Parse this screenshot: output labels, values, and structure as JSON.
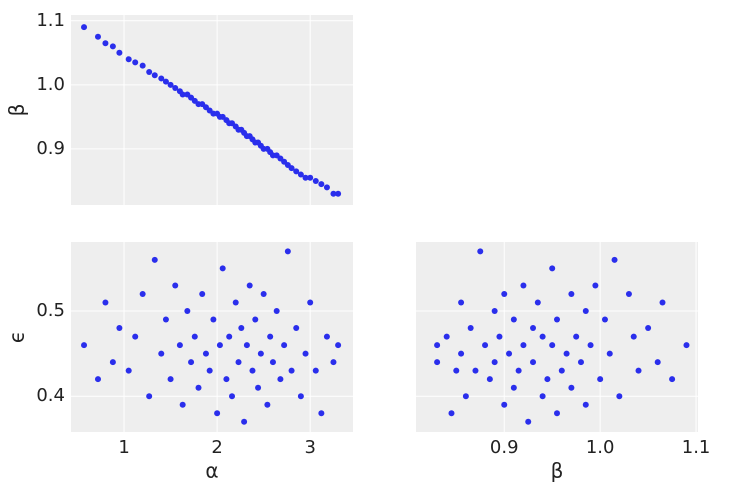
{
  "chart_data": [
    {
      "type": "scatter",
      "ylabel": "β",
      "color": "#2a2eec",
      "grid": true,
      "xtick_labels": false,
      "xlim": [
        0.43,
        3.46
      ],
      "ylim": [
        0.8125,
        1.109
      ],
      "xticks": [
        1,
        2,
        3
      ],
      "yticks": [
        0.9,
        {
          "value": 1,
          "label": "1.0"
        },
        1.1
      ],
      "x": [
        0.57,
        0.72,
        0.8,
        0.88,
        0.95,
        1.05,
        1.12,
        1.2,
        1.27,
        1.33,
        1.4,
        1.45,
        1.5,
        1.55,
        1.6,
        1.63,
        1.68,
        1.72,
        1.76,
        1.8,
        1.84,
        1.88,
        1.92,
        1.96,
        2.0,
        2.03,
        2.06,
        2.1,
        2.13,
        2.16,
        2.2,
        2.23,
        2.26,
        2.29,
        2.32,
        2.35,
        2.38,
        2.41,
        2.44,
        2.47,
        2.5,
        2.54,
        2.57,
        2.6,
        2.64,
        2.68,
        2.72,
        2.76,
        2.8,
        2.85,
        2.9,
        2.95,
        3.0,
        3.06,
        3.12,
        3.18,
        3.25,
        3.3
      ],
      "y": [
        1.09,
        1.075,
        1.065,
        1.06,
        1.05,
        1.04,
        1.035,
        1.03,
        1.02,
        1.015,
        1.01,
        1.005,
        1.0,
        0.995,
        0.99,
        0.985,
        0.985,
        0.98,
        0.975,
        0.97,
        0.97,
        0.965,
        0.96,
        0.955,
        0.955,
        0.95,
        0.95,
        0.945,
        0.94,
        0.94,
        0.935,
        0.93,
        0.93,
        0.925,
        0.92,
        0.92,
        0.915,
        0.91,
        0.91,
        0.905,
        0.9,
        0.9,
        0.895,
        0.89,
        0.89,
        0.885,
        0.88,
        0.875,
        0.87,
        0.865,
        0.86,
        0.855,
        0.855,
        0.85,
        0.845,
        0.84,
        0.83,
        0.83
      ]
    },
    {
      "type": "scatter",
      "xlabel": "α",
      "ylabel": "ϵ",
      "color": "#2a2eec",
      "grid": true,
      "xlim": [
        0.43,
        3.46
      ],
      "ylim": [
        0.358,
        0.581
      ],
      "xticks": [
        1,
        2,
        3
      ],
      "yticks": [
        0.4,
        0.5
      ],
      "x": [
        0.57,
        0.72,
        0.8,
        0.88,
        0.95,
        1.05,
        1.12,
        1.2,
        1.27,
        1.33,
        1.4,
        1.45,
        1.5,
        1.55,
        1.6,
        1.63,
        1.68,
        1.72,
        1.76,
        1.8,
        1.84,
        1.88,
        1.92,
        1.96,
        2.0,
        2.03,
        2.06,
        2.1,
        2.13,
        2.16,
        2.2,
        2.23,
        2.26,
        2.29,
        2.32,
        2.35,
        2.38,
        2.41,
        2.44,
        2.47,
        2.5,
        2.54,
        2.57,
        2.6,
        2.64,
        2.68,
        2.72,
        2.76,
        2.8,
        2.85,
        2.9,
        2.95,
        3.0,
        3.06,
        3.12,
        3.18,
        3.25,
        3.3
      ],
      "y": [
        0.46,
        0.42,
        0.51,
        0.44,
        0.48,
        0.43,
        0.47,
        0.52,
        0.4,
        0.56,
        0.45,
        0.49,
        0.42,
        0.53,
        0.46,
        0.39,
        0.5,
        0.44,
        0.47,
        0.41,
        0.52,
        0.45,
        0.43,
        0.49,
        0.38,
        0.46,
        0.55,
        0.42,
        0.47,
        0.4,
        0.51,
        0.44,
        0.48,
        0.37,
        0.46,
        0.53,
        0.43,
        0.49,
        0.41,
        0.45,
        0.52,
        0.39,
        0.47,
        0.44,
        0.5,
        0.42,
        0.46,
        0.57,
        0.43,
        0.48,
        0.4,
        0.45,
        0.51,
        0.43,
        0.38,
        0.47,
        0.44,
        0.46
      ]
    },
    {
      "type": "scatter",
      "xlabel": "β",
      "color": "#2a2eec",
      "grid": true,
      "ytick_labels": false,
      "xlim": [
        0.808,
        1.102
      ],
      "ylim": [
        0.358,
        0.581
      ],
      "xticks": [
        0.9,
        {
          "value": 1,
          "label": "1.0"
        },
        1.1
      ],
      "yticks": [
        0.4,
        0.5
      ],
      "x": [
        1.09,
        1.075,
        1.065,
        1.06,
        1.05,
        1.04,
        1.035,
        1.03,
        1.02,
        1.015,
        1.01,
        1.005,
        1.0,
        0.995,
        0.99,
        0.985,
        0.985,
        0.98,
        0.975,
        0.97,
        0.97,
        0.965,
        0.96,
        0.955,
        0.955,
        0.95,
        0.95,
        0.945,
        0.94,
        0.94,
        0.935,
        0.93,
        0.93,
        0.925,
        0.92,
        0.92,
        0.915,
        0.91,
        0.91,
        0.905,
        0.9,
        0.9,
        0.895,
        0.89,
        0.89,
        0.885,
        0.88,
        0.875,
        0.87,
        0.865,
        0.86,
        0.855,
        0.855,
        0.85,
        0.845,
        0.84,
        0.83,
        0.83
      ],
      "y": [
        0.46,
        0.42,
        0.51,
        0.44,
        0.48,
        0.43,
        0.47,
        0.52,
        0.4,
        0.56,
        0.45,
        0.49,
        0.42,
        0.53,
        0.46,
        0.39,
        0.5,
        0.44,
        0.47,
        0.41,
        0.52,
        0.45,
        0.43,
        0.49,
        0.38,
        0.46,
        0.55,
        0.42,
        0.47,
        0.4,
        0.51,
        0.44,
        0.48,
        0.37,
        0.46,
        0.53,
        0.43,
        0.49,
        0.41,
        0.45,
        0.52,
        0.39,
        0.47,
        0.44,
        0.5,
        0.42,
        0.46,
        0.57,
        0.43,
        0.48,
        0.4,
        0.45,
        0.51,
        0.43,
        0.38,
        0.47,
        0.44,
        0.46
      ]
    }
  ]
}
